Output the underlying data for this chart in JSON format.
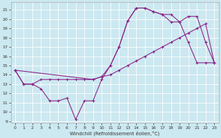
{
  "xlabel": "Windchill (Refroidissement éolien,°C)",
  "xlim": [
    -0.5,
    23.5
  ],
  "ylim": [
    8.8,
    21.8
  ],
  "yticks": [
    9,
    10,
    11,
    12,
    13,
    14,
    15,
    16,
    17,
    18,
    19,
    20,
    21
  ],
  "xticks": [
    0,
    1,
    2,
    3,
    4,
    5,
    6,
    7,
    8,
    9,
    10,
    11,
    12,
    13,
    14,
    15,
    16,
    17,
    18,
    19,
    20,
    21,
    22,
    23
  ],
  "bg_color": "#cce8f0",
  "line_color": "#882288",
  "line1_x": [
    0,
    1,
    2,
    3,
    4,
    5,
    6,
    7,
    8,
    9,
    10,
    11,
    12,
    13,
    14,
    15,
    16,
    17,
    18,
    19,
    20,
    21,
    22,
    23
  ],
  "line1_y": [
    14.5,
    13.0,
    13.0,
    12.5,
    11.2,
    11.2,
    11.5,
    9.2,
    11.2,
    11.2,
    13.5,
    15.0,
    17.0,
    19.8,
    21.2,
    21.2,
    20.8,
    20.5,
    19.7,
    19.7,
    17.5,
    15.3,
    15.3,
    15.3
  ],
  "line2_x": [
    0,
    1,
    2,
    3,
    4,
    5,
    6,
    7,
    8,
    9,
    10,
    11,
    12,
    13,
    14,
    15,
    16,
    17,
    18,
    19,
    20,
    21,
    22,
    23
  ],
  "line2_y": [
    14.5,
    13.0,
    13.0,
    13.5,
    13.5,
    13.5,
    13.5,
    13.5,
    13.5,
    13.5,
    13.8,
    14.0,
    14.5,
    15.0,
    15.5,
    16.0,
    16.5,
    17.0,
    17.5,
    18.0,
    18.5,
    19.0,
    19.5,
    15.3
  ],
  "line3_x": [
    0,
    9,
    10,
    11,
    12,
    13,
    14,
    15,
    16,
    17,
    18,
    19,
    20,
    21,
    22,
    23
  ],
  "line3_y": [
    14.5,
    13.5,
    13.8,
    15.0,
    17.0,
    19.8,
    21.2,
    21.2,
    20.8,
    20.5,
    20.5,
    19.7,
    20.3,
    20.3,
    17.5,
    15.3
  ]
}
